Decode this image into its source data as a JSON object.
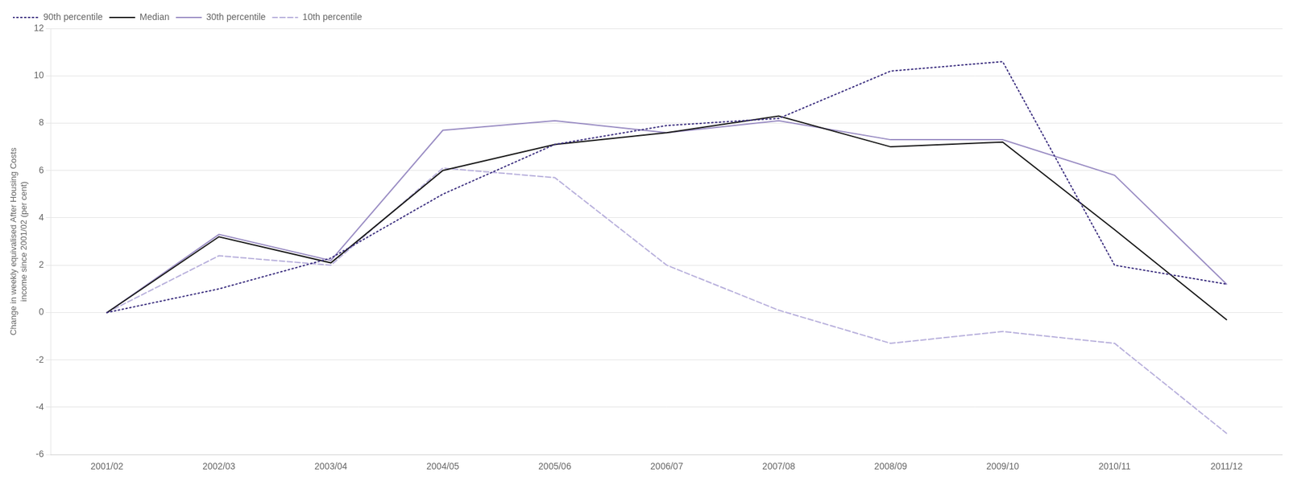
{
  "chart_data": {
    "type": "line",
    "categories": [
      "2001/02",
      "2002/03",
      "2003/04",
      "2004/05",
      "2005/06",
      "2006/07",
      "2007/08",
      "2008/09",
      "2009/10",
      "2010/11",
      "2011/12"
    ],
    "series": [
      {
        "name": "90th percentile",
        "color": "#3d3080",
        "line_style": "dotted",
        "values": [
          0,
          1.0,
          2.3,
          5.0,
          7.1,
          7.9,
          8.2,
          10.2,
          10.6,
          2.0,
          1.2
        ]
      },
      {
        "name": "Median",
        "color": "#1a1a1a",
        "line_style": "solid",
        "values": [
          0,
          3.2,
          2.1,
          6.0,
          7.1,
          7.6,
          8.3,
          7.0,
          7.2,
          3.5,
          -0.3
        ]
      },
      {
        "name": "30th percentile",
        "color": "#9b8ec4",
        "line_style": "solid",
        "values": [
          0,
          3.3,
          2.2,
          7.7,
          8.1,
          7.6,
          8.1,
          7.3,
          7.3,
          5.8,
          1.2
        ]
      },
      {
        "name": "10th percentile",
        "color": "#b8b0dc",
        "line_style": "dashed",
        "values": [
          0,
          2.4,
          2.0,
          6.1,
          5.7,
          2.0,
          0.1,
          -1.3,
          -0.8,
          -1.3,
          -5.1
        ]
      }
    ],
    "ylabel": "Change in weekly equivalised After Housing Costs\nincome since 2001/02 (per cent)",
    "ylim": [
      -6,
      12
    ],
    "yticks": [
      -6,
      -4,
      -2,
      0,
      2,
      4,
      6,
      8,
      10,
      12
    ],
    "grid": true,
    "legend": "upper left"
  }
}
